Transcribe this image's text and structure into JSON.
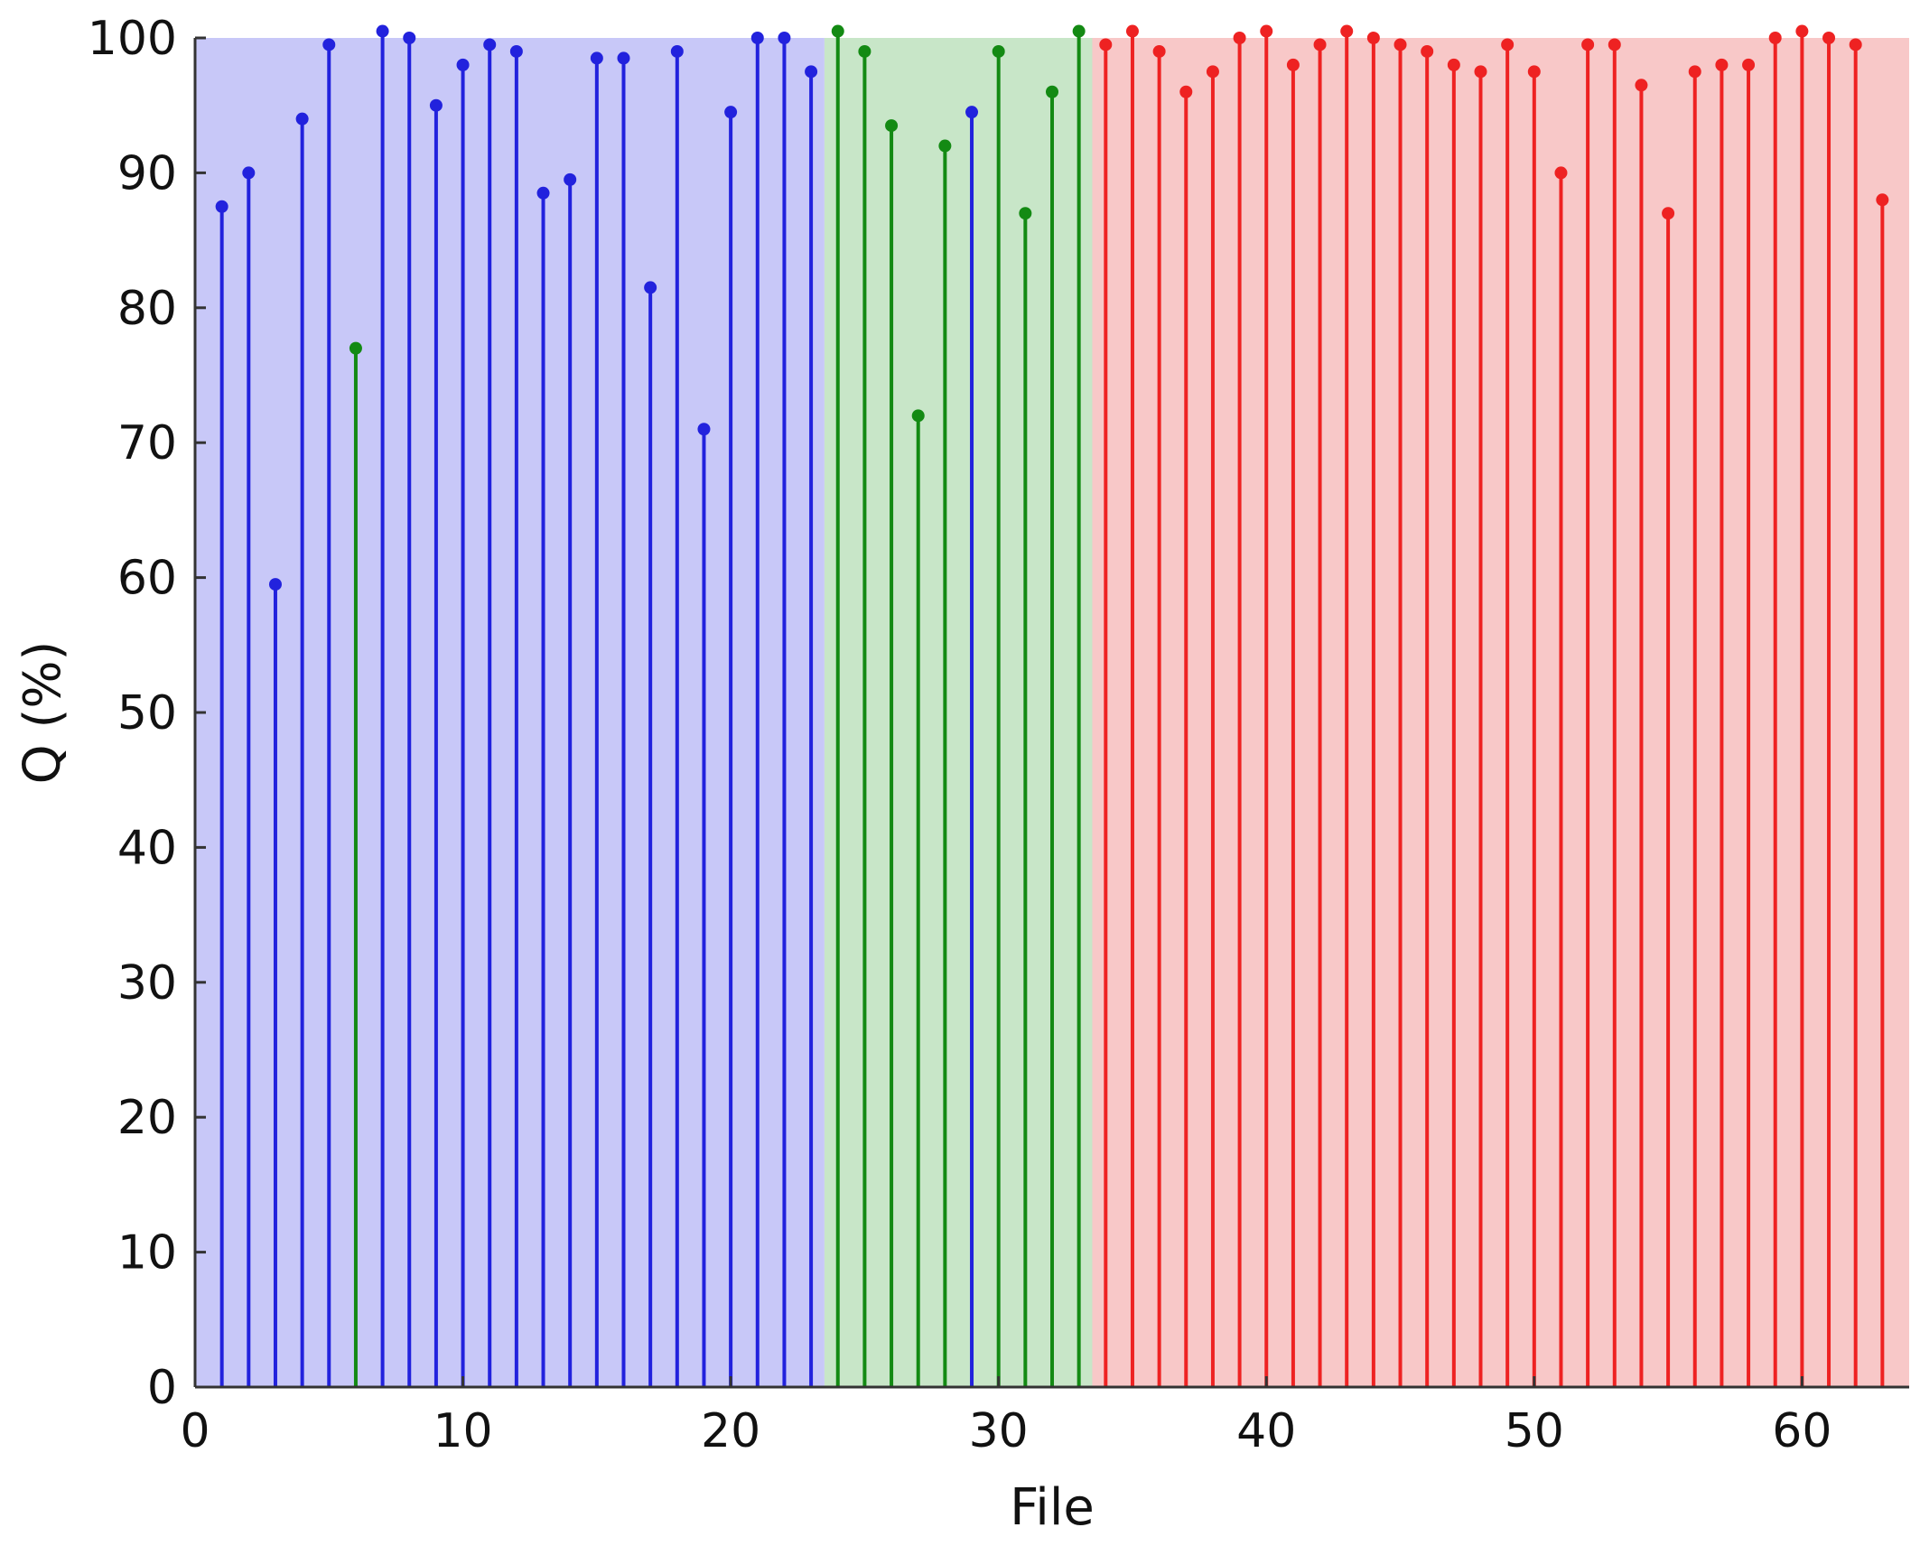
{
  "chart_data": {
    "type": "stem",
    "xlabel": "File",
    "ylabel": "Q (%)",
    "xlim": [
      0,
      64
    ],
    "ylim": [
      0,
      100
    ],
    "xticks": [
      "0",
      "10",
      "20",
      "30",
      "40",
      "50",
      "60"
    ],
    "yticks": [
      "0",
      "10",
      "20",
      "30",
      "40",
      "50",
      "60",
      "70",
      "80",
      "90",
      "100"
    ],
    "regions": [
      {
        "x_start": 0,
        "x_end": 23.5,
        "color": "#c8c8f8"
      },
      {
        "x_start": 23.5,
        "x_end": 33.5,
        "color": "#c8e6c8"
      },
      {
        "x_start": 33.5,
        "x_end": 64,
        "color": "#f8c8c8"
      }
    ],
    "colors": {
      "blue": "#2222dd",
      "green": "#138a13",
      "red": "#ee2222"
    },
    "points": [
      {
        "x": 1,
        "y": 87.5,
        "color": "blue"
      },
      {
        "x": 2,
        "y": 90,
        "color": "blue"
      },
      {
        "x": 3,
        "y": 59.5,
        "color": "blue"
      },
      {
        "x": 4,
        "y": 94,
        "color": "blue"
      },
      {
        "x": 5,
        "y": 99.5,
        "color": "blue"
      },
      {
        "x": 6,
        "y": 77,
        "color": "green"
      },
      {
        "x": 7,
        "y": 100.5,
        "color": "blue"
      },
      {
        "x": 8,
        "y": 100,
        "color": "blue"
      },
      {
        "x": 9,
        "y": 95,
        "color": "blue"
      },
      {
        "x": 10,
        "y": 98,
        "color": "blue"
      },
      {
        "x": 11,
        "y": 99.5,
        "color": "blue"
      },
      {
        "x": 12,
        "y": 99,
        "color": "blue"
      },
      {
        "x": 13,
        "y": 88.5,
        "color": "blue"
      },
      {
        "x": 14,
        "y": 89.5,
        "color": "blue"
      },
      {
        "x": 15,
        "y": 98.5,
        "color": "blue"
      },
      {
        "x": 16,
        "y": 98.5,
        "color": "blue"
      },
      {
        "x": 17,
        "y": 81.5,
        "color": "blue"
      },
      {
        "x": 18,
        "y": 99,
        "color": "blue"
      },
      {
        "x": 19,
        "y": 71,
        "color": "blue"
      },
      {
        "x": 20,
        "y": 94.5,
        "color": "blue"
      },
      {
        "x": 21,
        "y": 100,
        "color": "blue"
      },
      {
        "x": 22,
        "y": 100,
        "color": "blue"
      },
      {
        "x": 23,
        "y": 97.5,
        "color": "blue"
      },
      {
        "x": 24,
        "y": 100.5,
        "color": "green"
      },
      {
        "x": 25,
        "y": 99,
        "color": "green"
      },
      {
        "x": 26,
        "y": 93.5,
        "color": "green"
      },
      {
        "x": 27,
        "y": 72,
        "color": "green"
      },
      {
        "x": 28,
        "y": 92,
        "color": "green"
      },
      {
        "x": 29,
        "y": 94.5,
        "color": "blue"
      },
      {
        "x": 30,
        "y": 99,
        "color": "green"
      },
      {
        "x": 31,
        "y": 87,
        "color": "green"
      },
      {
        "x": 32,
        "y": 96,
        "color": "green"
      },
      {
        "x": 33,
        "y": 100.5,
        "color": "green"
      },
      {
        "x": 34,
        "y": 99.5,
        "color": "red"
      },
      {
        "x": 35,
        "y": 100.5,
        "color": "red"
      },
      {
        "x": 36,
        "y": 99,
        "color": "red"
      },
      {
        "x": 37,
        "y": 96,
        "color": "red"
      },
      {
        "x": 38,
        "y": 97.5,
        "color": "red"
      },
      {
        "x": 39,
        "y": 100,
        "color": "red"
      },
      {
        "x": 40,
        "y": 100.5,
        "color": "red"
      },
      {
        "x": 41,
        "y": 98,
        "color": "red"
      },
      {
        "x": 42,
        "y": 99.5,
        "color": "red"
      },
      {
        "x": 43,
        "y": 100.5,
        "color": "red"
      },
      {
        "x": 44,
        "y": 100,
        "color": "red"
      },
      {
        "x": 45,
        "y": 99.5,
        "color": "red"
      },
      {
        "x": 46,
        "y": 99,
        "color": "red"
      },
      {
        "x": 47,
        "y": 98,
        "color": "red"
      },
      {
        "x": 48,
        "y": 97.5,
        "color": "red"
      },
      {
        "x": 49,
        "y": 99.5,
        "color": "red"
      },
      {
        "x": 50,
        "y": 97.5,
        "color": "red"
      },
      {
        "x": 51,
        "y": 90,
        "color": "red"
      },
      {
        "x": 52,
        "y": 99.5,
        "color": "red"
      },
      {
        "x": 53,
        "y": 99.5,
        "color": "red"
      },
      {
        "x": 54,
        "y": 96.5,
        "color": "red"
      },
      {
        "x": 55,
        "y": 87,
        "color": "red"
      },
      {
        "x": 56,
        "y": 97.5,
        "color": "red"
      },
      {
        "x": 57,
        "y": 98,
        "color": "red"
      },
      {
        "x": 58,
        "y": 98,
        "color": "red"
      },
      {
        "x": 59,
        "y": 100,
        "color": "red"
      },
      {
        "x": 60,
        "y": 100.5,
        "color": "red"
      },
      {
        "x": 61,
        "y": 100,
        "color": "red"
      },
      {
        "x": 62,
        "y": 99.5,
        "color": "red"
      },
      {
        "x": 63,
        "y": 88,
        "color": "red"
      }
    ]
  }
}
